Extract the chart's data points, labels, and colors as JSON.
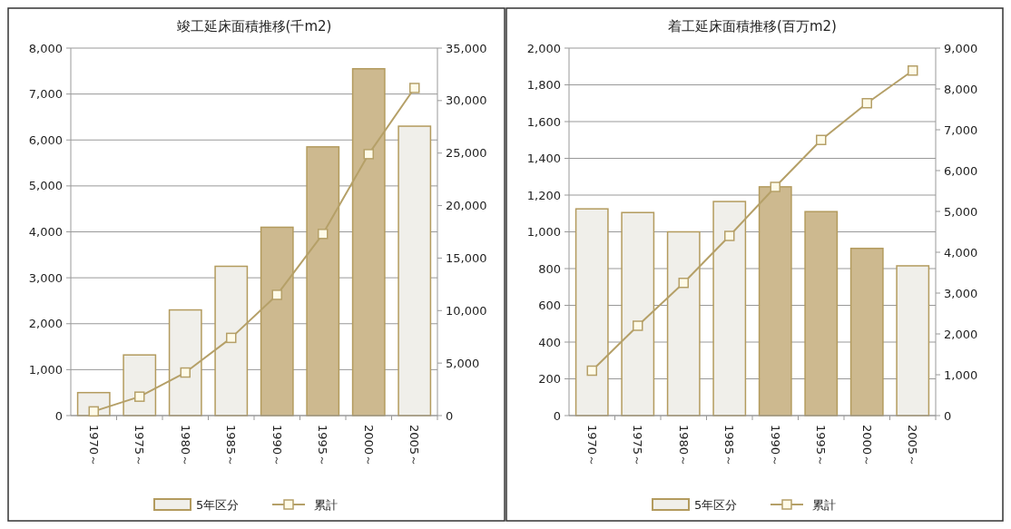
{
  "chart_data": [
    {
      "type": "bar",
      "title": "竣工延床面積推移(千m2)",
      "categories": [
        "1970～",
        "1975～",
        "1980～",
        "1985～",
        "1990～",
        "1995～",
        "2000～",
        "2005～"
      ],
      "series": [
        {
          "name": "5年区分",
          "color": "#f0efea",
          "colors": [
            "#f0efea",
            "#f0efea",
            "#f0efea",
            "#f0efea",
            "#cdb98f",
            "#cdb98f",
            "#cdb98f",
            "#f0efea"
          ],
          "values": [
            500,
            1320,
            2300,
            3250,
            4100,
            5850,
            7550,
            6300
          ]
        },
        {
          "name": "累計",
          "type": "line",
          "axis": "y2",
          "color": "#b5a068",
          "values": [
            400,
            1800,
            4100,
            7400,
            11500,
            17300,
            24900,
            31200
          ]
        }
      ],
      "ylim": [
        0,
        8000
      ],
      "yticks": [
        0,
        {
          "value": 1000,
          "label": "1,000"
        },
        {
          "value": 2000,
          "label": "2,000"
        },
        {
          "value": 3000,
          "label": "3,000"
        },
        {
          "value": 4000,
          "label": "4,000"
        },
        {
          "value": 5000,
          "label": "5,000"
        },
        {
          "value": 6000,
          "label": "6,000"
        },
        {
          "value": 7000,
          "label": "7,000"
        },
        {
          "value": 8000,
          "label": "8,000"
        }
      ],
      "y2lim": [
        0,
        35000
      ],
      "y2ticks": [
        0,
        {
          "value": 5000,
          "label": "5,000"
        },
        {
          "value": 10000,
          "label": "10,000"
        },
        {
          "value": 15000,
          "label": "15,000"
        },
        {
          "value": 20000,
          "label": "20,000"
        },
        {
          "value": 25000,
          "label": "25,000"
        },
        {
          "value": 30000,
          "label": "30,000"
        },
        {
          "value": 35000,
          "label": "35,000"
        }
      ],
      "grid": "y",
      "legend": "bottom",
      "marker": "square"
    },
    {
      "type": "bar",
      "title": "着工延床面積推移(百万m2)",
      "categories": [
        "1970～",
        "1975～",
        "1980～",
        "1985～",
        "1990～",
        "1995～",
        "2000～",
        "2005～"
      ],
      "series": [
        {
          "name": "5年区分",
          "color": "#f0efea",
          "colors": [
            "#f0efea",
            "#f0efea",
            "#f0efea",
            "#f0efea",
            "#cdb98f",
            "#cdb98f",
            "#cdb98f",
            "#f0efea"
          ],
          "values": [
            1125,
            1105,
            1000,
            1165,
            1245,
            1110,
            910,
            815
          ]
        },
        {
          "name": "累計",
          "type": "line",
          "axis": "y2",
          "color": "#b5a068",
          "values": [
            1100,
            2200,
            3250,
            4400,
            5600,
            6750,
            7650,
            8450
          ]
        }
      ],
      "ylim": [
        0,
        2000
      ],
      "yticks": [
        0,
        200,
        400,
        600,
        800,
        {
          "value": 1000,
          "label": "1,000"
        },
        {
          "value": 1200,
          "label": "1,200"
        },
        {
          "value": 1400,
          "label": "1,400"
        },
        {
          "value": 1600,
          "label": "1,600"
        },
        {
          "value": 1800,
          "label": "1,800"
        },
        {
          "value": 2000,
          "label": "2,000"
        }
      ],
      "y2lim": [
        0,
        9000
      ],
      "y2ticks": [
        0,
        {
          "value": 1000,
          "label": "1,000"
        },
        {
          "value": 2000,
          "label": "2,000"
        },
        {
          "value": 3000,
          "label": "3,000"
        },
        {
          "value": 4000,
          "label": "4,000"
        },
        {
          "value": 5000,
          "label": "5,000"
        },
        {
          "value": 6000,
          "label": "6,000"
        },
        {
          "value": 7000,
          "label": "7,000"
        },
        {
          "value": 8000,
          "label": "8,000"
        },
        {
          "value": 9000,
          "label": "9,000"
        }
      ],
      "grid": "y",
      "legend": "bottom",
      "marker": "square"
    }
  ]
}
